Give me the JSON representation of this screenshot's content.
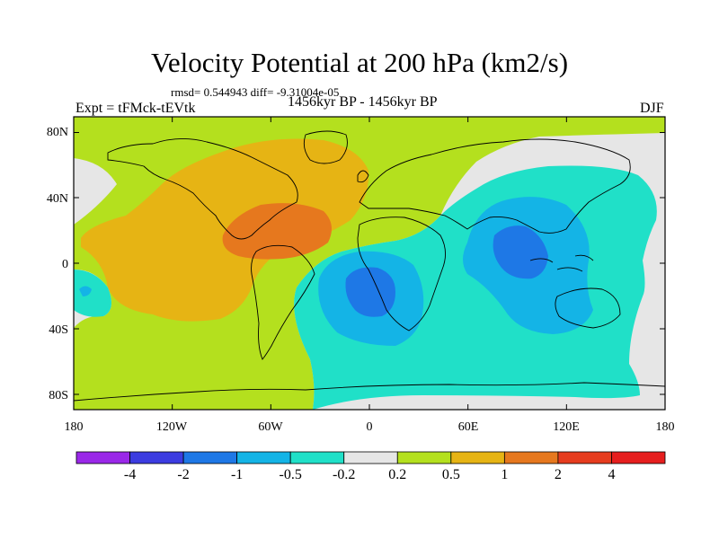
{
  "title": "Velocity Potential at 200 hPa (km2/s)",
  "stats": "rmsd= 0.544943 diff= -9.31004e-05",
  "subtitle": "1456kyr BP - 1456kyr BP",
  "experiment": "Expt = tFMck-tEVtk",
  "season": "DJF",
  "y_ticks": [
    "80N",
    "40N",
    "0",
    "40S",
    "80S"
  ],
  "x_ticks": [
    "180",
    "120W",
    "60W",
    "0",
    "60E",
    "120E",
    "180"
  ],
  "colorbar": {
    "labels": [
      "-4",
      "-2",
      "-1",
      "-0.5",
      "-0.2",
      "0.2",
      "0.5",
      "1",
      "2",
      "4"
    ],
    "colors": [
      "#9a28e8",
      "#3c3ce0",
      "#1e78e6",
      "#14b4e6",
      "#20e0c8",
      "#e6e6e6",
      "#b4e01e",
      "#e6b414",
      "#e6781e",
      "#e63c1e",
      "#e61e1e"
    ]
  },
  "colors": {
    "below_neg4": "#9a28e8",
    "neg4_neg2": "#3c3ce0",
    "neg2_neg1": "#1e78e6",
    "neg1_neg05": "#14b4e6",
    "neg05_neg02": "#20e0c8",
    "neutral": "#e6e6e6",
    "p02_p05": "#b4e01e",
    "p05_p1": "#e6b414",
    "p1_p2": "#e6781e"
  }
}
